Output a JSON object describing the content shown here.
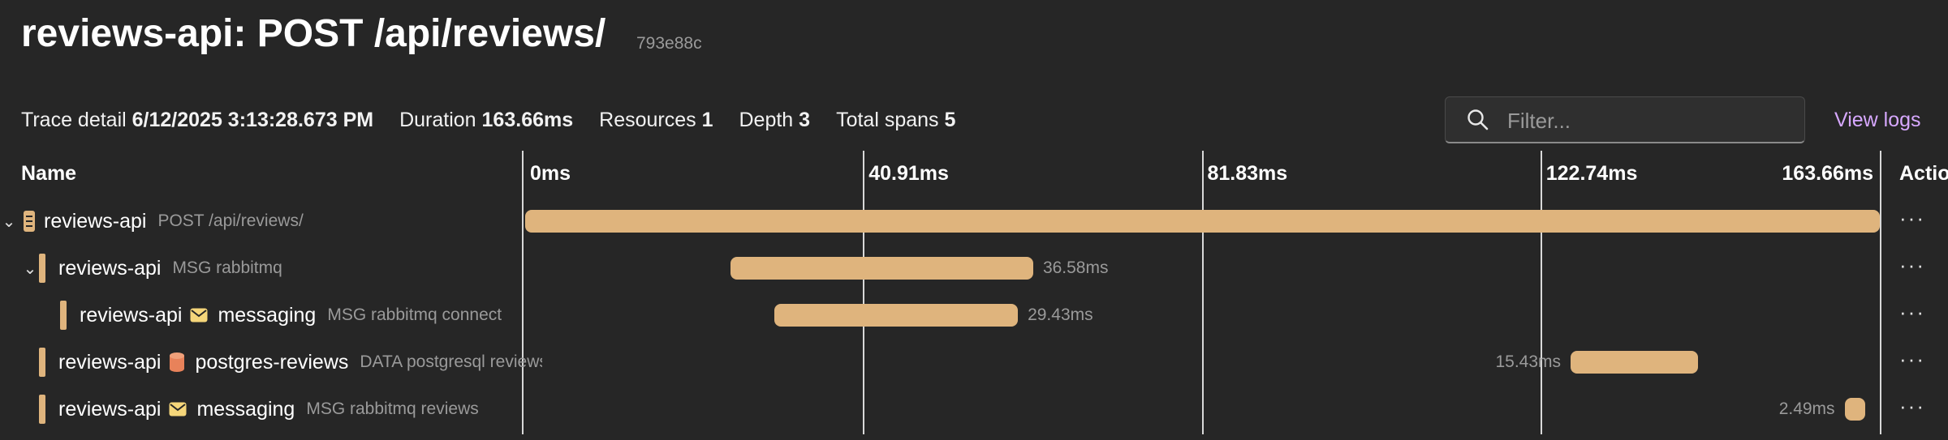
{
  "header": {
    "title": "reviews-api: POST /api/reviews/",
    "trace_id": "793e88c"
  },
  "meta": {
    "trace_detail_label": "Trace detail",
    "trace_detail_value": "6/12/2025 3:13:28.673 PM",
    "duration_label": "Duration",
    "duration_value": "163.66ms",
    "resources_label": "Resources",
    "resources_value": "1",
    "depth_label": "Depth",
    "depth_value": "3",
    "total_spans_label": "Total spans",
    "total_spans_value": "5"
  },
  "filter": {
    "placeholder": "Filter..."
  },
  "view_logs_label": "View logs",
  "columns": {
    "name": "Name",
    "actions": "Actio"
  },
  "timeline": {
    "ticks": [
      "0ms",
      "40.91ms",
      "81.83ms",
      "122.74ms",
      "163.66ms"
    ],
    "total_ms": 163.66
  },
  "accent_color": "#dfb47d",
  "spans": [
    {
      "service": "reviews-api",
      "icon": "server-icon",
      "destination": "",
      "detail": "POST /api/reviews/",
      "depth": 0,
      "expanded": true,
      "start_ms": 0,
      "duration_ms": 163.66,
      "duration_label": ""
    },
    {
      "service": "reviews-api",
      "icon": "",
      "destination": "",
      "detail": "MSG rabbitmq",
      "depth": 1,
      "expanded": true,
      "start_ms": 24.8,
      "duration_ms": 36.58,
      "duration_label": "36.58ms"
    },
    {
      "service": "reviews-api",
      "icon": "envelope-icon",
      "destination": "messaging",
      "detail": "MSG rabbitmq connect",
      "depth": 2,
      "expanded": null,
      "start_ms": 30.1,
      "duration_ms": 29.43,
      "duration_label": "29.43ms"
    },
    {
      "service": "reviews-api",
      "icon": "database-icon",
      "destination": "postgres-reviews",
      "detail": "DATA postgresql reviews",
      "depth": 1,
      "expanded": null,
      "start_ms": 126.3,
      "duration_ms": 15.43,
      "duration_label": "15.43ms"
    },
    {
      "service": "reviews-api",
      "icon": "envelope-icon",
      "destination": "messaging",
      "detail": "MSG rabbitmq reviews",
      "depth": 1,
      "expanded": null,
      "start_ms": 159.4,
      "duration_ms": 2.49,
      "duration_label": "2.49ms"
    }
  ]
}
